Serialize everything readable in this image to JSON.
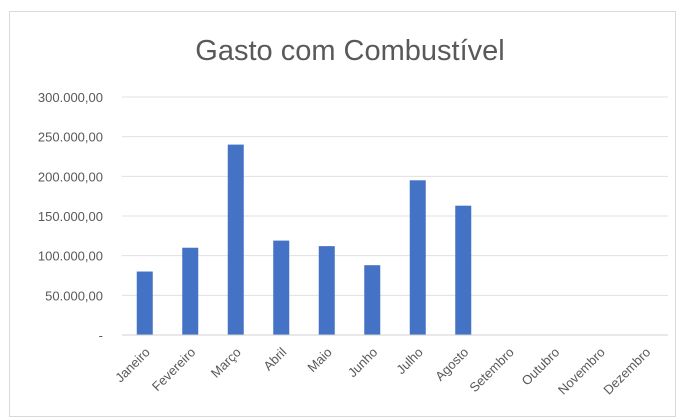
{
  "chart_data": {
    "type": "bar",
    "title": "Gasto com Combustível",
    "categories": [
      "Janeiro",
      "Fevereiro",
      "Março",
      "Abril",
      "Maio",
      "Junho",
      "Julho",
      "Agosto",
      "Setembro",
      "Outubro",
      "Novembro",
      "Dezembro"
    ],
    "values": [
      80000,
      110000,
      240000,
      119000,
      112000,
      88000,
      195000,
      163000,
      null,
      null,
      null,
      null
    ],
    "ylim": [
      0,
      300000
    ],
    "yticks": [
      0,
      50000,
      100000,
      150000,
      200000,
      250000,
      300000
    ],
    "ytick_labels": [
      "-",
      "50.000,00",
      "100.000,00",
      "150.000,00",
      "200.000,00",
      "250.000,00",
      "300.000,00"
    ],
    "xlabel": "",
    "ylabel": "",
    "grid": true,
    "legend": "none",
    "bar_color": "#4472C4"
  }
}
